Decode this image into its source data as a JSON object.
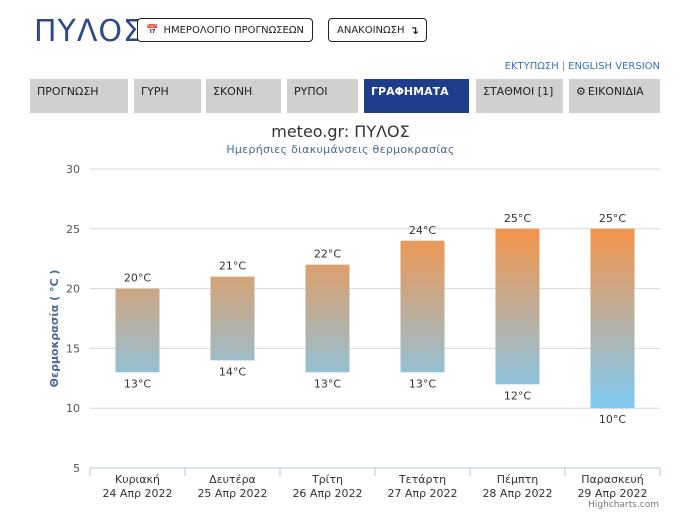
{
  "header": {
    "city": "ΠΥΛΟΣ",
    "calendar_button": "ΗΜΕΡΟΛΟΓΙΟ ΠΡΟΓΝΩΣΕΩΝ",
    "calendar_icon": "calendar-icon",
    "announce_button": "ΑΝΑΚΟΙΝΩΣΗ",
    "announce_icon": "arrow-down-icon"
  },
  "links": {
    "print": "ΕΚΤΥΠΩΣΗ",
    "separator": "|",
    "english": "ENGLISH VERSION"
  },
  "tabs": [
    {
      "label": "ΠΡΟΓΝΩΣΗ"
    },
    {
      "label": "ΓΥΡΗ"
    },
    {
      "label": "ΣΚΟΝΗ"
    },
    {
      "label": "ΡΥΠΟΙ"
    },
    {
      "label": "ΓΡΑΦΗΜΑΤΑ",
      "active": true
    },
    {
      "label": "ΣΤΑΘΜΟΙ [1]"
    },
    {
      "label": "ΕΙΚΟΝΙΔΙΑ",
      "icon": "gear-icon"
    }
  ],
  "chart_data": {
    "type": "bar",
    "title": "meteo.gr: ΠΥΛΟΣ",
    "subtitle": "Ημερήσιες διακυμάνσεις θερμοκρασίας",
    "ylabel": "Θερμοκρασία ( °C )",
    "ylim": [
      5,
      30
    ],
    "yticks": [
      5,
      10,
      15,
      20,
      25,
      30
    ],
    "grid": true,
    "unit": "°C",
    "categories": [
      [
        "Κυριακή",
        "24 Απρ 2022"
      ],
      [
        "Δευτέρα",
        "25 Απρ 2022"
      ],
      [
        "Τρίτη",
        "26 Απρ 2022"
      ],
      [
        "Τετάρτη",
        "27 Απρ 2022"
      ],
      [
        "Πέμπτη",
        "28 Απρ 2022"
      ],
      [
        "Παρασκευή",
        "29 Απρ 2022"
      ]
    ],
    "min": [
      13,
      14,
      13,
      13,
      12,
      10
    ],
    "max": [
      20,
      21,
      22,
      24,
      25,
      25
    ],
    "colors": {
      "high": "#f5944a",
      "low": "#7ecbf5",
      "grid": "#d8d8d8"
    }
  },
  "credits": "Highcharts.com"
}
